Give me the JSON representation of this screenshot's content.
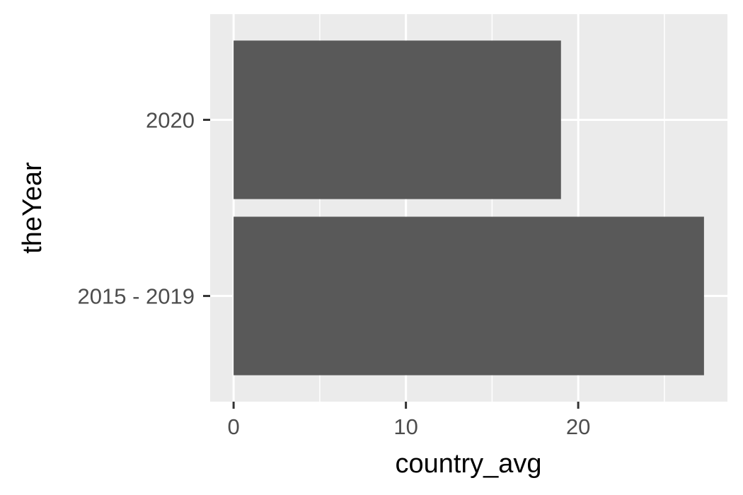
{
  "chart_data": {
    "type": "bar",
    "orientation": "horizontal",
    "title": "",
    "xlabel": "country_avg",
    "ylabel": "theYear",
    "categories": [
      "2015 - 2019",
      "2020"
    ],
    "values": [
      27.3,
      19.0
    ],
    "xlim": [
      -1.36,
      28.66
    ],
    "x_ticks": [
      0,
      10,
      20
    ],
    "x_tick_labels": [
      "0",
      "10",
      "20"
    ],
    "x_minor_ticks": [
      5,
      15,
      25
    ],
    "grid": true,
    "legend": "none",
    "colors": {
      "bar": "#595959",
      "panel": "#ebebeb",
      "grid": "#ffffff",
      "tick_text": "#4d4d4d",
      "axis_title": "#000000",
      "tick_mark": "#333333"
    }
  }
}
